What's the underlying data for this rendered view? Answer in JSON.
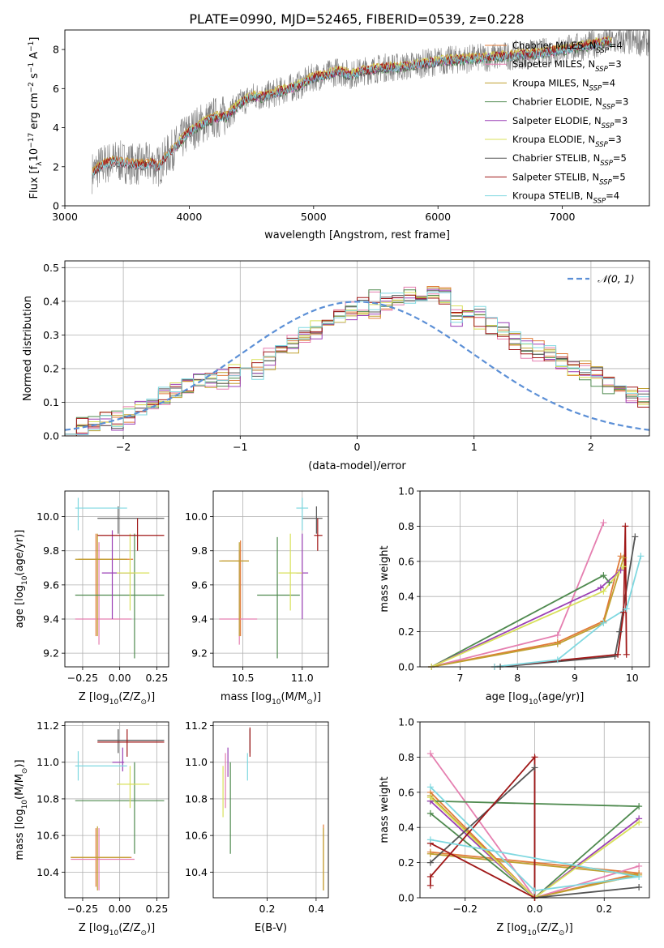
{
  "figure_title": "PLATE=0990, MJD=52465, FIBERID=0539, z=0.228",
  "colors": [
    "#e07b39",
    "#e57fb0",
    "#c0a030",
    "#4f8a4f",
    "#9a3fb5",
    "#d8e05a",
    "#555555",
    "#a01818",
    "#7fd8e0"
  ],
  "chart_data": [
    {
      "id": "spectrum",
      "type": "line",
      "xlabel": "wavelength [Angstrom, rest frame]",
      "ylabel_parts": {
        "pre": "Flux [f",
        "sub": "λ",
        "mid": "10",
        "sup1": "−17",
        "post1": " erg cm",
        "sup2": "−2",
        "post2": " s",
        "sup3": "−1",
        "post3": " A",
        "sup4": "−1",
        "close": "]"
      },
      "xlim": [
        3000,
        7700
      ],
      "ylim": [
        0,
        9
      ],
      "xticks": [
        "3000",
        "4000",
        "5000",
        "6000",
        "7000"
      ],
      "yticks": [
        "0",
        "2",
        "4",
        "6",
        "8"
      ],
      "legend_position": "right",
      "legend": [
        {
          "name": "Chabrier MILES, N",
          "sub": "SSP",
          "suffix": "=4"
        },
        {
          "name": "Salpeter MILES, N",
          "sub": "SSP",
          "suffix": "=3"
        },
        {
          "name": "Kroupa MILES, N",
          "sub": "SSP",
          "suffix": "=4"
        },
        {
          "name": "Chabrier ELODIE, N",
          "sub": "SSP",
          "suffix": "=3"
        },
        {
          "name": "Salpeter ELODIE, N",
          "sub": "SSP",
          "suffix": "=3"
        },
        {
          "name": "Kroupa ELODIE, N",
          "sub": "SSP",
          "suffix": "=3"
        },
        {
          "name": "Chabrier STELIB, N",
          "sub": "SSP",
          "suffix": "=5"
        },
        {
          "name": "Salpeter STELIB, N",
          "sub": "SSP",
          "suffix": "=5"
        },
        {
          "name": "Kroupa STELIB, N",
          "sub": "SSP",
          "suffix": "=4"
        }
      ],
      "model_curve": {
        "x": [
          3220,
          3300,
          3400,
          3500,
          3600,
          3700,
          3750,
          3800,
          3900,
          4000,
          4100,
          4200,
          4300,
          4400,
          4500,
          4600,
          4700,
          4800,
          4900,
          5000,
          5100,
          5200,
          5300,
          5400,
          5500,
          5600,
          5700,
          5800,
          5900,
          6000,
          6200,
          6400,
          6600,
          6800,
          7000,
          7200,
          7350
        ],
        "y": [
          1.7,
          2.1,
          2.3,
          2.2,
          2.1,
          2.2,
          2.0,
          2.4,
          3.1,
          3.8,
          4.2,
          4.5,
          4.6,
          5.2,
          5.6,
          5.6,
          5.8,
          6.0,
          6.2,
          6.6,
          6.7,
          6.9,
          6.7,
          6.9,
          7.0,
          7.1,
          7.1,
          7.2,
          7.3,
          7.4,
          7.5,
          7.6,
          7.7,
          7.8,
          8.0,
          8.2,
          8.4
        ]
      }
    },
    {
      "id": "residuals",
      "type": "histogram",
      "xlabel": "(data-model)/error",
      "ylabel": "Normed distribution",
      "xlim": [
        -2.5,
        2.5
      ],
      "ylim": [
        0,
        0.52
      ],
      "xticks": [
        "−2",
        "−1",
        "0",
        "1",
        "2"
      ],
      "yticks": [
        "0.0",
        "0.1",
        "0.2",
        "0.3",
        "0.4",
        "0.5"
      ],
      "grid": true,
      "legend_position": "top-right",
      "reference_curve": {
        "name": "𝒩(0, 1)",
        "mean": 0,
        "sigma": 1
      },
      "bin_edges_start": -2.5,
      "bin_width": 0.1,
      "series_profiles": [
        [
          0.03,
          0.02,
          0.04,
          0.05,
          0.04,
          0.06,
          0.08,
          0.09,
          0.12,
          0.13,
          0.15,
          0.17,
          0.16,
          0.18,
          0.17,
          0.2,
          0.19,
          0.22,
          0.25,
          0.27,
          0.3,
          0.31,
          0.33,
          0.35,
          0.37,
          0.38,
          0.36,
          0.4,
          0.42,
          0.41,
          0.39,
          0.42,
          0.44,
          0.35,
          0.36,
          0.37,
          0.33,
          0.32,
          0.29,
          0.27,
          0.26,
          0.25,
          0.22,
          0.2,
          0.2,
          0.19,
          0.16,
          0.14,
          0.12,
          0.12
        ],
        [
          0.02,
          0.03,
          0.04,
          0.05,
          0.05,
          0.07,
          0.08,
          0.1,
          0.11,
          0.14,
          0.14,
          0.16,
          0.17,
          0.16,
          0.19,
          0.2,
          0.21,
          0.24,
          0.26,
          0.28,
          0.29,
          0.33,
          0.34,
          0.36,
          0.38,
          0.39,
          0.41,
          0.39,
          0.41,
          0.43,
          0.42,
          0.4,
          0.38,
          0.37,
          0.35,
          0.34,
          0.32,
          0.3,
          0.28,
          0.25,
          0.24,
          0.24,
          0.21,
          0.2,
          0.19,
          0.17,
          0.15,
          0.14,
          0.12,
          0.11
        ]
      ]
    },
    {
      "id": "age-vs-Z",
      "type": "errorbar",
      "xlabel_parts": {
        "pre": "Z [log",
        "sub": "10",
        "post": "(Z/Z",
        "sub2": "⊙",
        "close": ")]"
      },
      "ylabel_parts": {
        "pre": "age  [log",
        "sub": "10",
        "post": "(age/yr)]"
      },
      "xlim": [
        -0.37,
        0.33
      ],
      "ylim": [
        9.12,
        10.15
      ],
      "xticks": [
        "−0.25",
        "0.00",
        "0.25"
      ],
      "yticks": [
        "9.2",
        "9.4",
        "9.6",
        "9.8",
        "10.0"
      ],
      "grid": true,
      "points": [
        {
          "x": -0.16,
          "y": 9.75,
          "xe": [
            -0.28,
            0.09
          ],
          "ye": [
            9.3,
            9.9
          ]
        },
        {
          "x": -0.14,
          "y": 9.4,
          "xe": [
            -0.3,
            0.08
          ],
          "ye": [
            9.25,
            9.85
          ]
        },
        {
          "x": -0.15,
          "y": 9.75,
          "xe": [
            -0.3,
            0.05
          ],
          "ye": [
            9.3,
            9.9
          ]
        },
        {
          "x": 0.1,
          "y": 9.54,
          "xe": [
            -0.3,
            0.3
          ],
          "ye": [
            9.17,
            9.9
          ]
        },
        {
          "x": -0.05,
          "y": 9.67,
          "xe": [
            -0.12,
            0.1
          ],
          "ye": [
            9.4,
            9.92
          ]
        },
        {
          "x": 0.07,
          "y": 9.67,
          "xe": [
            -0.02,
            0.2
          ],
          "ye": [
            9.45,
            9.9
          ]
        },
        {
          "x": -0.01,
          "y": 9.99,
          "xe": [
            -0.15,
            0.3
          ],
          "ye": [
            9.9,
            10.06
          ]
        },
        {
          "x": 0.12,
          "y": 9.89,
          "xe": [
            -0.15,
            0.3
          ],
          "ye": [
            9.8,
            9.99
          ]
        },
        {
          "x": -0.28,
          "y": 10.05,
          "xe": [
            -0.3,
            0.05
          ],
          "ye": [
            9.92,
            10.11
          ]
        }
      ]
    },
    {
      "id": "age-vs-mass",
      "type": "errorbar",
      "xlabel_parts": {
        "pre": "mass [log",
        "sub": "10",
        "post": "(M/M",
        "sub2": "⊙",
        "close": ")]"
      },
      "xlim": [
        10.25,
        11.22
      ],
      "ylim": [
        9.12,
        10.15
      ],
      "xticks": [
        "10.5",
        "11.0"
      ],
      "yticks": [
        "9.2",
        "9.4",
        "9.6",
        "9.8",
        "10.0"
      ],
      "grid": true,
      "points": [
        {
          "x": 10.48,
          "y": 9.74,
          "xe": [
            10.32,
            10.55
          ],
          "ye": [
            9.3,
            9.86
          ]
        },
        {
          "x": 10.47,
          "y": 9.4,
          "xe": [
            10.3,
            10.62
          ],
          "ye": [
            9.25,
            9.8
          ]
        },
        {
          "x": 10.47,
          "y": 9.74,
          "xe": [
            10.3,
            10.55
          ],
          "ye": [
            9.3,
            9.85
          ]
        },
        {
          "x": 10.79,
          "y": 9.54,
          "xe": [
            10.62,
            10.98
          ],
          "ye": [
            9.17,
            9.88
          ]
        },
        {
          "x": 11.0,
          "y": 9.67,
          "xe": [
            10.95,
            11.05
          ],
          "ye": [
            9.4,
            9.9
          ]
        },
        {
          "x": 10.9,
          "y": 9.67,
          "xe": [
            10.8,
            11.0
          ],
          "ye": [
            9.45,
            9.9
          ]
        },
        {
          "x": 11.12,
          "y": 9.99,
          "xe": [
            11.0,
            11.17
          ],
          "ye": [
            9.9,
            10.06
          ]
        },
        {
          "x": 11.13,
          "y": 9.89,
          "xe": [
            11.1,
            11.17
          ],
          "ye": [
            9.8,
            9.99
          ]
        },
        {
          "x": 11.0,
          "y": 10.05,
          "xe": [
            10.95,
            11.05
          ],
          "ye": [
            9.92,
            10.11
          ]
        }
      ]
    },
    {
      "id": "weight-vs-age",
      "type": "line",
      "xlabel_parts": {
        "pre": "age  [log",
        "sub": "10",
        "post": "(age/yr)]"
      },
      "ylabel": "mass weight",
      "xlim": [
        6.3,
        10.3
      ],
      "ylim": [
        0,
        1.0
      ],
      "xticks": [
        "7",
        "8",
        "9",
        "10"
      ],
      "yticks": [
        "0.0",
        "0.2",
        "0.4",
        "0.6",
        "0.8",
        "1.0"
      ],
      "grid": true,
      "series": [
        {
          "x": [
            6.5,
            8.7,
            9.5,
            9.8
          ],
          "y": [
            0.0,
            0.14,
            0.26,
            0.63
          ]
        },
        {
          "x": [
            6.5,
            8.7,
            9.5
          ],
          "y": [
            0.0,
            0.18,
            0.82
          ]
        },
        {
          "x": [
            6.5,
            8.7,
            9.5,
            9.85
          ],
          "y": [
            0.0,
            0.13,
            0.25,
            0.62
          ]
        },
        {
          "x": [
            6.5,
            9.5,
            9.6
          ],
          "y": [
            0.0,
            0.52,
            0.48
          ]
        },
        {
          "x": [
            6.5,
            9.45,
            9.8
          ],
          "y": [
            0.0,
            0.45,
            0.55
          ]
        },
        {
          "x": [
            6.5,
            9.5,
            9.85
          ],
          "y": [
            0.0,
            0.43,
            0.57
          ]
        },
        {
          "x": [
            7.7,
            9.7,
            9.78,
            10.05
          ],
          "y": [
            0.0,
            0.06,
            0.2,
            0.74
          ]
        },
        {
          "x": [
            7.6,
            9.75,
            9.85,
            9.88,
            9.9
          ],
          "y": [
            0.0,
            0.07,
            0.31,
            0.8,
            0.07
          ]
        },
        {
          "x": [
            7.6,
            8.7,
            9.5,
            9.9,
            10.15
          ],
          "y": [
            0.0,
            0.04,
            0.25,
            0.33,
            0.63
          ]
        }
      ]
    },
    {
      "id": "mass-vs-Z",
      "type": "errorbar",
      "xlabel_parts": {
        "pre": "Z [log",
        "sub": "10",
        "post": "(Z/Z",
        "sub2": "⊙",
        "close": ")]"
      },
      "ylabel_parts": {
        "pre": "mass [log",
        "sub": "10",
        "post": "(M/M",
        "sub2": "⊙",
        "close": ")]"
      },
      "xlim": [
        -0.37,
        0.33
      ],
      "ylim": [
        10.26,
        11.22
      ],
      "xticks": [
        "−0.25",
        "0.00",
        "0.25"
      ],
      "yticks": [
        "10.4",
        "10.6",
        "10.8",
        "11.0",
        "11.2"
      ],
      "grid": true,
      "points": [
        {
          "x": -0.16,
          "y": 10.48,
          "xe": [
            -0.33,
            0.08
          ],
          "ye": [
            10.32,
            10.64
          ]
        },
        {
          "x": -0.14,
          "y": 10.47,
          "xe": [
            -0.33,
            0.1
          ],
          "ye": [
            10.3,
            10.64
          ]
        },
        {
          "x": -0.15,
          "y": 10.48,
          "xe": [
            -0.33,
            0.07
          ],
          "ye": [
            10.3,
            10.65
          ]
        },
        {
          "x": 0.1,
          "y": 10.79,
          "xe": [
            -0.3,
            0.3
          ],
          "ye": [
            10.5,
            11.0
          ]
        },
        {
          "x": 0.02,
          "y": 11.0,
          "xe": [
            -0.05,
            0.03
          ],
          "ye": [
            10.95,
            11.08
          ]
        },
        {
          "x": 0.07,
          "y": 10.88,
          "xe": [
            -0.02,
            0.2
          ],
          "ye": [
            10.75,
            10.98
          ]
        },
        {
          "x": -0.01,
          "y": 11.12,
          "xe": [
            -0.15,
            0.3
          ],
          "ye": [
            11.05,
            11.18
          ]
        },
        {
          "x": 0.05,
          "y": 11.11,
          "xe": [
            -0.15,
            0.3
          ],
          "ye": [
            11.03,
            11.18
          ]
        },
        {
          "x": -0.28,
          "y": 10.98,
          "xe": [
            -0.3,
            0.05
          ],
          "ye": [
            10.9,
            11.06
          ]
        }
      ]
    },
    {
      "id": "mass-vs-ebv",
      "type": "errorbar",
      "xlabel": "E(B-V)",
      "xlim": [
        -0.02,
        0.45
      ],
      "ylim": [
        10.26,
        11.22
      ],
      "xticks": [
        "0.2",
        "0.4"
      ],
      "yticks": [
        "10.4",
        "10.6",
        "10.8",
        "11.0",
        "11.2"
      ],
      "grid": true,
      "points": [
        {
          "x": 0.43,
          "y": 10.48,
          "ye": [
            10.3,
            10.66
          ]
        },
        {
          "x": 0.03,
          "y": 10.9,
          "ye": [
            10.75,
            11.05
          ]
        },
        {
          "x": 0.43,
          "y": 10.47,
          "ye": [
            10.3,
            10.64
          ]
        },
        {
          "x": 0.05,
          "y": 10.79,
          "ye": [
            10.5,
            11.0
          ]
        },
        {
          "x": 0.04,
          "y": 11.0,
          "ye": [
            10.92,
            11.08
          ]
        },
        {
          "x": 0.02,
          "y": 10.85,
          "ye": [
            10.7,
            10.98
          ]
        },
        {
          "x": 0.13,
          "y": 11.12,
          "ye": [
            11.05,
            11.18
          ]
        },
        {
          "x": 0.13,
          "y": 11.11,
          "ye": [
            11.03,
            11.19
          ]
        },
        {
          "x": 0.12,
          "y": 11.0,
          "ye": [
            10.9,
            11.05
          ]
        }
      ]
    },
    {
      "id": "weight-vs-Z",
      "type": "line",
      "xlabel_parts": {
        "pre": "Z [log",
        "sub": "10",
        "post": "(Z/Z",
        "sub2": "⊙",
        "close": ")]"
      },
      "ylabel": "mass weight",
      "xlim": [
        -0.33,
        0.33
      ],
      "ylim": [
        0,
        1.0
      ],
      "xticks": [
        "−0.2",
        "0.0",
        "0.2"
      ],
      "yticks": [
        "0.0",
        "0.2",
        "0.4",
        "0.6",
        "0.8",
        "1.0"
      ],
      "grid": true,
      "series": [
        {
          "x": [
            -0.3,
            0.0,
            0.3,
            -0.3
          ],
          "y": [
            0.6,
            0.0,
            0.14,
            0.26
          ]
        },
        {
          "x": [
            -0.3,
            0.0,
            0.3
          ],
          "y": [
            0.82,
            0.0,
            0.18
          ]
        },
        {
          "x": [
            -0.3,
            0.0,
            0.3,
            -0.3
          ],
          "y": [
            0.58,
            0.0,
            0.13,
            0.25
          ]
        },
        {
          "x": [
            -0.3,
            0.0,
            0.3,
            -0.3
          ],
          "y": [
            0.48,
            0.0,
            0.52,
            0.55
          ]
        },
        {
          "x": [
            -0.3,
            0.0,
            0.3
          ],
          "y": [
            0.55,
            0.0,
            0.45
          ]
        },
        {
          "x": [
            -0.3,
            0.0,
            0.3
          ],
          "y": [
            0.57,
            0.0,
            0.43
          ]
        },
        {
          "x": [
            -0.3,
            0.0,
            0.0,
            0.3
          ],
          "y": [
            0.2,
            0.74,
            0.0,
            0.06
          ]
        },
        {
          "x": [
            -0.3,
            -0.3,
            0.0,
            0.0,
            -0.3
          ],
          "y": [
            0.07,
            0.12,
            0.8,
            0.0,
            0.31
          ]
        },
        {
          "x": [
            -0.3,
            0.0,
            0.3,
            -0.3
          ],
          "y": [
            0.63,
            0.04,
            0.12,
            0.33
          ]
        }
      ]
    }
  ]
}
